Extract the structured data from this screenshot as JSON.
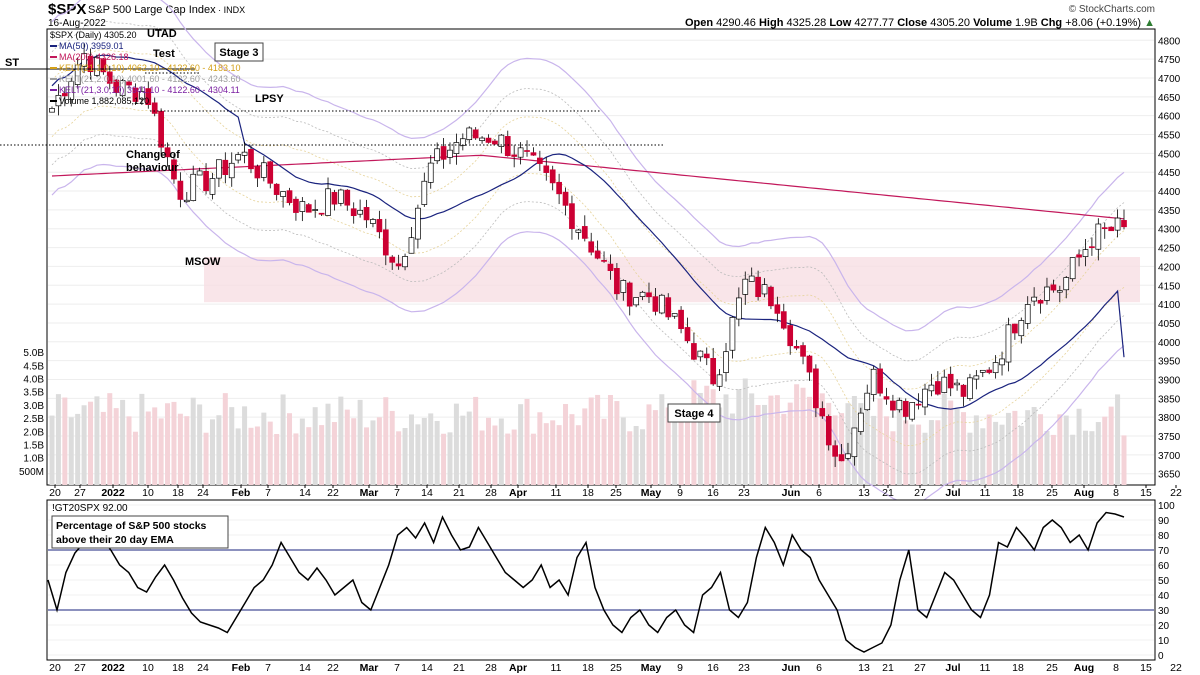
{
  "header": {
    "symbol": "$SPX",
    "name": "S&P 500 Large Cap Index",
    "exchange": "INDX",
    "date": "16-Aug-2022",
    "open_label": "Open",
    "open": "4290.46",
    "high_label": "High",
    "high": "4325.28",
    "low_label": "Low",
    "low": "4277.77",
    "close_label": "Close",
    "close": "4305.20",
    "volume_label": "Volume",
    "volume": "1.9B",
    "chg_label": "Chg",
    "chg": "+8.06 (+0.19%)",
    "last_value": "4305.20",
    "credit": "© StockCharts.com"
  },
  "legend": [
    {
      "text": "$SPX (Daily) 4305.20",
      "color": "#000000"
    },
    {
      "text": "MA(50) 3959.01",
      "color": "#1a237e"
    },
    {
      "text": "MA(200) 4326.18",
      "color": "#c2185b"
    },
    {
      "text": "KELT(21,1.0,10) 4062.10 - 4122.60 - 4183.10",
      "color": "#d4a017"
    },
    {
      "text": "KELT(21,2.0,10) 4001.60 - 4122.60 - 4243.60",
      "color": "#9e9e9e"
    },
    {
      "text": "KELT(21,3.0,10) 3941.10 - 4122.60 - 4304.11",
      "color": "#7b1fa2"
    },
    {
      "text": "Volume 1,882,085,120",
      "color": "#000000"
    }
  ],
  "annotations": {
    "utad": "UTAD",
    "test": "Test",
    "stage3": "Stage 3",
    "st": "ST",
    "lpsy": "LPSY",
    "change": "Change of",
    "behaviour": "behaviour",
    "msow": "MSOW",
    "stage4": "Stage 4"
  },
  "price_axis": [
    "4800",
    "4750",
    "4700",
    "4650",
    "4600",
    "4550",
    "4500",
    "4450",
    "4400",
    "4350",
    "4300",
    "4250",
    "4200",
    "4150",
    "4100",
    "4050",
    "4000",
    "3950",
    "3900",
    "3850",
    "3800",
    "3750",
    "3700",
    "3650"
  ],
  "volume_axis": [
    "5.0B",
    "4.5B",
    "4.0B",
    "3.5B",
    "3.0B",
    "2.5B",
    "2.0B",
    "1.5B",
    "1.0B",
    "500M"
  ],
  "x_axis": [
    "20",
    "27",
    "2022",
    "10",
    "18",
    "24",
    "Feb",
    "7",
    "14",
    "22",
    "Mar",
    "7",
    "14",
    "21",
    "28",
    "Apr",
    "11",
    "18",
    "25",
    "May",
    "9",
    "16",
    "23",
    "Jun",
    "6",
    "13",
    "21",
    "27",
    "Jul",
    "11",
    "18",
    "25",
    "Aug",
    "8",
    "15",
    "22"
  ],
  "x_axis_bold": [
    "2022",
    "Feb",
    "Mar",
    "Apr",
    "May",
    "Jun",
    "Jul",
    "Aug"
  ],
  "indicator": {
    "title": "!GT20SPX 92.00",
    "label_line1": "Percentage of S&P 500 stocks",
    "label_line2": "above their 20 day EMA",
    "axis": [
      "100",
      "90",
      "80",
      "70",
      "60",
      "50",
      "40",
      "30",
      "20",
      "10",
      "0"
    ]
  },
  "colors": {
    "up": "#ffffff",
    "down": "#cc0033",
    "ma50": "#1a237e",
    "ma200": "#c2185b",
    "kelt3": "#b39ddb",
    "zone": "#f8e3e6"
  },
  "chart_data": [
    {
      "type": "candlestick",
      "title": "$SPX S&P 500 Large Cap Index",
      "ylim": [
        3620,
        4830
      ],
      "x": [
        "2021-12-20",
        "2021-12-27",
        "2022-01-03",
        "2022-01-10",
        "2022-01-18",
        "2022-01-24",
        "2022-01-31",
        "2022-02-07",
        "2022-02-14",
        "2022-02-22",
        "2022-02-28",
        "2022-03-07",
        "2022-03-14",
        "2022-03-21",
        "2022-03-28",
        "2022-04-04",
        "2022-04-11",
        "2022-04-18",
        "2022-04-25",
        "2022-05-02",
        "2022-05-09",
        "2022-05-16",
        "2022-05-23",
        "2022-05-31",
        "2022-06-06",
        "2022-06-13",
        "2022-06-21",
        "2022-06-27",
        "2022-07-05",
        "2022-07-11",
        "2022-07-18",
        "2022-07-25",
        "2022-08-01",
        "2022-08-08",
        "2022-08-15"
      ],
      "close": [
        4620,
        4766,
        4677,
        4662,
        4398,
        4431,
        4500,
        4418,
        4349,
        4385,
        4329,
        4204,
        4463,
        4543,
        4546,
        4488,
        4393,
        4272,
        4132,
        4123,
        4024,
        3901,
        4158,
        4109,
        3901,
        3675,
        3912,
        3825,
        3899,
        3863,
        3962,
        4130,
        4145,
        4280,
        4305
      ],
      "ma50_end": 3959.01,
      "ma200_end": 4326.18,
      "zone": [
        4105,
        4225
      ]
    },
    {
      "type": "bar",
      "title": "Volume",
      "ylim": [
        0,
        5500
      ],
      "unit": "M",
      "last": 1882
    },
    {
      "type": "line",
      "title": "!GT20SPX",
      "ylim": [
        0,
        100
      ],
      "reference_lines": [
        70,
        30
      ],
      "values": [
        50,
        30,
        55,
        68,
        75,
        82,
        78,
        70,
        60,
        55,
        45,
        42,
        52,
        60,
        50,
        38,
        28,
        22,
        20,
        18,
        15,
        25,
        35,
        45,
        50,
        60,
        75,
        65,
        55,
        50,
        58,
        50,
        40,
        45,
        50,
        35,
        30,
        45,
        60,
        80,
        85,
        78,
        88,
        75,
        92,
        80,
        70,
        72,
        85,
        75,
        65,
        55,
        50,
        45,
        50,
        60,
        45,
        50,
        40,
        65,
        75,
        45,
        30,
        20,
        15,
        25,
        30,
        20,
        15,
        25,
        30,
        20,
        15,
        40,
        45,
        55,
        30,
        25,
        35,
        65,
        85,
        75,
        60,
        80,
        70,
        65,
        50,
        40,
        30,
        10,
        5,
        2,
        5,
        8,
        20,
        50,
        70,
        30,
        25,
        40,
        55,
        50,
        40,
        30,
        25,
        40,
        75,
        72,
        85,
        78,
        70,
        85,
        90,
        85,
        75,
        80,
        70,
        88,
        95,
        94,
        92
      ]
    }
  ]
}
